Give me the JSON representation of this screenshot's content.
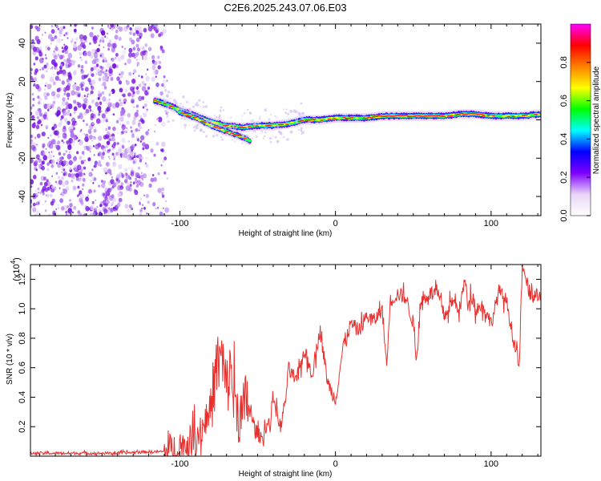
{
  "title": "C2E6.2025.243.07.06.E03",
  "chart_data": [
    {
      "type": "heatmap",
      "name": "spectrogram",
      "xlabel": "Height of straight line (km)",
      "ylabel": "Frequency (Hz)",
      "xlim": [
        -196,
        132
      ],
      "ylim": [
        -50,
        50
      ],
      "x_ticks": [
        -100,
        0,
        100
      ],
      "y_ticks": [
        -40,
        -20,
        0,
        20,
        40
      ],
      "noise_region": {
        "x_range": [
          -196,
          -108
        ],
        "y_range": [
          -50,
          50
        ]
      },
      "ridge": {
        "x": [
          -116,
          -108,
          -100,
          -90,
          -80,
          -70,
          -60,
          -50,
          -40,
          -30,
          -20,
          -10,
          0,
          10,
          20,
          30,
          40,
          50,
          60,
          70,
          80,
          90,
          100,
          110,
          120,
          132
        ],
        "y": [
          10,
          8,
          5,
          2,
          -1,
          -3,
          -4,
          -3,
          -3,
          -2,
          0,
          0,
          1,
          1,
          1,
          2,
          2,
          2,
          2,
          2,
          3,
          3,
          2,
          2,
          2,
          3
        ]
      },
      "branch": {
        "x": [
          -100,
          -90,
          -80,
          -70,
          -60,
          -55
        ],
        "y": [
          4,
          1,
          -3,
          -6,
          -9,
          -11
        ]
      },
      "colorbar": {
        "label": "Normalized spectral amplitude",
        "ticks": [
          "0.0",
          "0.2",
          "0.4",
          "0.6",
          "0.8"
        ],
        "tick_values": [
          0.0,
          0.2,
          0.4,
          0.6,
          0.8
        ],
        "range": [
          0,
          1
        ],
        "colors": [
          "#ffffff",
          "#e9d6f6",
          "#7f00ff",
          "#0000ff",
          "#00ffff",
          "#00ff00",
          "#ffff00",
          "#ff8000",
          "#ff0000",
          "#ff00ff"
        ]
      }
    },
    {
      "type": "line",
      "name": "snr",
      "xlabel": "Height of straight line (km)",
      "ylabel": "SNR (10 * v/v)",
      "y_multiplier": "(x10",
      "y_multiplier_exp": "4",
      "y_multiplier_close": ")",
      "xlim": [
        -196,
        132
      ],
      "ylim": [
        0,
        1.3
      ],
      "x_ticks": [
        -100,
        0,
        100
      ],
      "y_ticks": [
        0.2,
        0.4,
        0.6,
        0.8,
        1.0,
        1.2
      ],
      "y_tick_labels": [
        "0.2",
        "0.4",
        "0.6",
        "0.8",
        "1.0",
        "1.2"
      ],
      "color": "#e8302e",
      "series": [
        {
          "name": "SNR",
          "x": [
            -196,
            -180,
            -160,
            -140,
            -120,
            -110,
            -100,
            -95,
            -90,
            -85,
            -80,
            -77,
            -75,
            -72,
            -70,
            -67,
            -65,
            -62,
            -60,
            -57,
            -55,
            -52,
            -50,
            -47,
            -45,
            -42,
            -40,
            -37,
            -35,
            -32,
            -30,
            -25,
            -20,
            -15,
            -10,
            -5,
            0,
            5,
            10,
            15,
            20,
            25,
            30,
            33,
            35,
            40,
            45,
            50,
            52,
            55,
            60,
            65,
            70,
            75,
            80,
            83,
            85,
            88,
            90,
            95,
            100,
            105,
            110,
            115,
            118,
            120,
            125,
            128,
            132
          ],
          "y": [
            0.02,
            0.02,
            0.02,
            0.02,
            0.03,
            0.03,
            0.05,
            0.08,
            0.12,
            0.2,
            0.35,
            0.55,
            0.7,
            0.6,
            0.45,
            0.6,
            0.35,
            0.3,
            0.25,
            0.4,
            0.3,
            0.2,
            0.15,
            0.12,
            0.2,
            0.22,
            0.42,
            0.25,
            0.2,
            0.4,
            0.6,
            0.5,
            0.72,
            0.55,
            0.86,
            0.5,
            0.38,
            0.75,
            0.9,
            0.85,
            0.95,
            0.92,
            1.0,
            0.6,
            1.05,
            1.1,
            1.08,
            0.9,
            0.65,
            1.05,
            1.1,
            1.12,
            0.95,
            1.05,
            1.0,
            1.2,
            1.05,
            1.1,
            1.0,
            1.02,
            0.9,
            1.12,
            1.05,
            0.75,
            0.6,
            1.28,
            1.1,
            1.1,
            1.05
          ]
        }
      ]
    }
  ]
}
